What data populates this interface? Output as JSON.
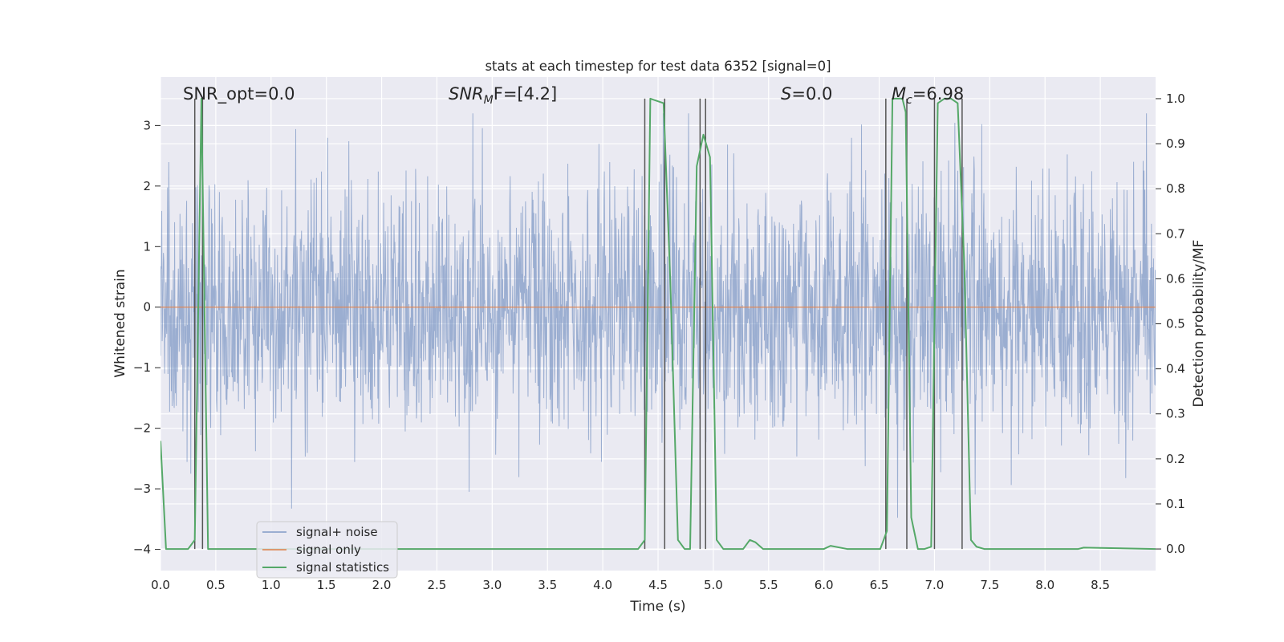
{
  "chart_data": {
    "type": "line",
    "title": "stats at each timestep for test data 6352 [signal=0]",
    "xlabel": "Time (s)",
    "ylabel_left": "Whitened strain",
    "ylabel_right": "Detection probability/MF",
    "xlim": [
      0.0,
      9.0
    ],
    "ylim_left": [
      -4.35,
      3.8
    ],
    "ylim_right": [
      -0.048,
      1.048
    ],
    "x_ticks": [
      "0.0",
      "0.5",
      "1.0",
      "1.5",
      "2.0",
      "2.5",
      "3.0",
      "3.5",
      "4.0",
      "4.5",
      "5.0",
      "5.5",
      "6.0",
      "6.5",
      "7.0",
      "7.5",
      "8.0",
      "8.5"
    ],
    "y_left_ticks": [
      "−4",
      "−3",
      "−2",
      "−1",
      "0",
      "1",
      "2",
      "3"
    ],
    "y_right_ticks": [
      "0.0",
      "0.1",
      "0.2",
      "0.3",
      "0.4",
      "0.5",
      "0.6",
      "0.7",
      "0.8",
      "0.9",
      "1.0"
    ],
    "annotations": {
      "snr_opt": "SNR_opt=0.0",
      "snr_mf_sym": "SNR",
      "snr_mf_sub": "M",
      "snr_mf_rest": "F=[4.2]",
      "s_sym": "S",
      "s_rest": "=0.0",
      "mc_sym": "M",
      "mc_sub": "c",
      "mc_rest": "=6.98"
    },
    "legend": {
      "placement": "lower-left",
      "entries": [
        "signal+ noise",
        "signal only",
        "signal statistics"
      ]
    },
    "series": [
      {
        "name": "signal+ noise",
        "color": "#4c72b0",
        "description": "whitened strain noise, approx. Gaussian, sample range about -3.6 to 3.2"
      },
      {
        "name": "signal only",
        "color": "#dd8452",
        "x": [
          0.0,
          9.0
        ],
        "y": [
          0.0,
          0.0
        ]
      },
      {
        "name": "signal statistics",
        "color": "#55a868",
        "x": [
          0.0,
          0.05,
          0.25,
          0.31,
          0.37,
          0.43,
          4.32,
          4.38,
          4.43,
          4.55,
          4.61,
          4.68,
          4.74,
          4.79,
          4.85,
          4.91,
          4.97,
          5.03,
          5.09,
          5.15,
          5.27,
          5.33,
          5.38,
          5.45,
          5.51,
          6.0,
          6.06,
          6.21,
          6.51,
          6.57,
          6.62,
          6.71,
          6.74,
          6.79,
          6.85,
          6.91,
          6.97,
          7.03,
          7.09,
          7.15,
          7.21,
          7.27,
          7.33,
          7.38,
          7.45,
          8.3,
          8.35,
          9.0
        ],
        "y": [
          0.24,
          0.0,
          0.0,
          0.02,
          1.0,
          0.0,
          0.0,
          0.02,
          1.0,
          0.99,
          0.6,
          0.02,
          0.0,
          0.0,
          0.85,
          0.92,
          0.87,
          0.02,
          0.0,
          0.0,
          0.0,
          0.02,
          0.015,
          0.0,
          0.0,
          0.0,
          0.007,
          0.0,
          0.0,
          0.04,
          1.0,
          1.0,
          0.97,
          0.07,
          0.0,
          0.0,
          0.005,
          0.99,
          1.0,
          1.0,
          0.99,
          0.63,
          0.02,
          0.005,
          0.0,
          0.0,
          0.003,
          0.0
        ]
      }
    ],
    "vertical_lines_x": [
      0.31,
      0.38,
      4.38,
      4.56,
      4.88,
      4.93,
      6.56,
      6.75,
      7.0,
      7.25
    ],
    "colors": {
      "background": "#eaeaf2",
      "grid": "#ffffff",
      "vline": "#555555"
    }
  }
}
